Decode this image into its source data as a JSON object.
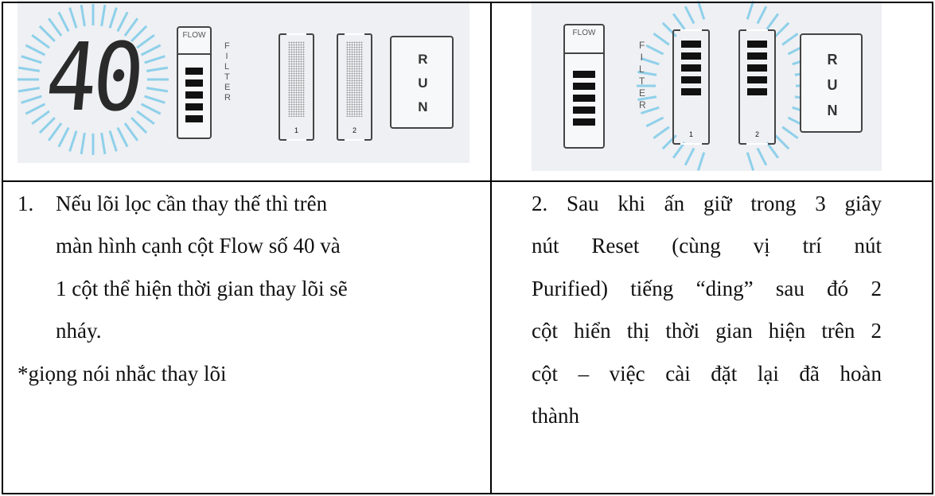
{
  "table": {
    "rows": [
      [
        {
          "display": "40",
          "flow_label": "FLOW",
          "filter_label": "FILTER",
          "columns": [
            "1",
            "2"
          ],
          "run_label": "RUN"
        },
        {
          "flow_label": "FLOW",
          "filter_label": "FILTER",
          "columns": [
            "1",
            "2"
          ],
          "run_label": "RUN"
        }
      ],
      [
        {
          "number": "1.",
          "lines": [
            "Nếu lõi lọc cần thay thế thì trên",
            "màn hình cạnh cột Flow số 40 và",
            "1 cột thể hiện thời gian thay lõi sẽ",
            "nháy."
          ],
          "note": "*giọng nói nhắc thay lõi"
        },
        {
          "lines": [
            "2. Sau khi ấn giữ trong 3 giây",
            "nút Reset (cùng vị trí nút",
            "Purified) tiếng “ding” sau đó 2",
            "cột hiển thị thời gian hiện trên 2",
            "cột – việc cài đặt lại đã hoàn",
            "thành"
          ]
        }
      ]
    ]
  }
}
